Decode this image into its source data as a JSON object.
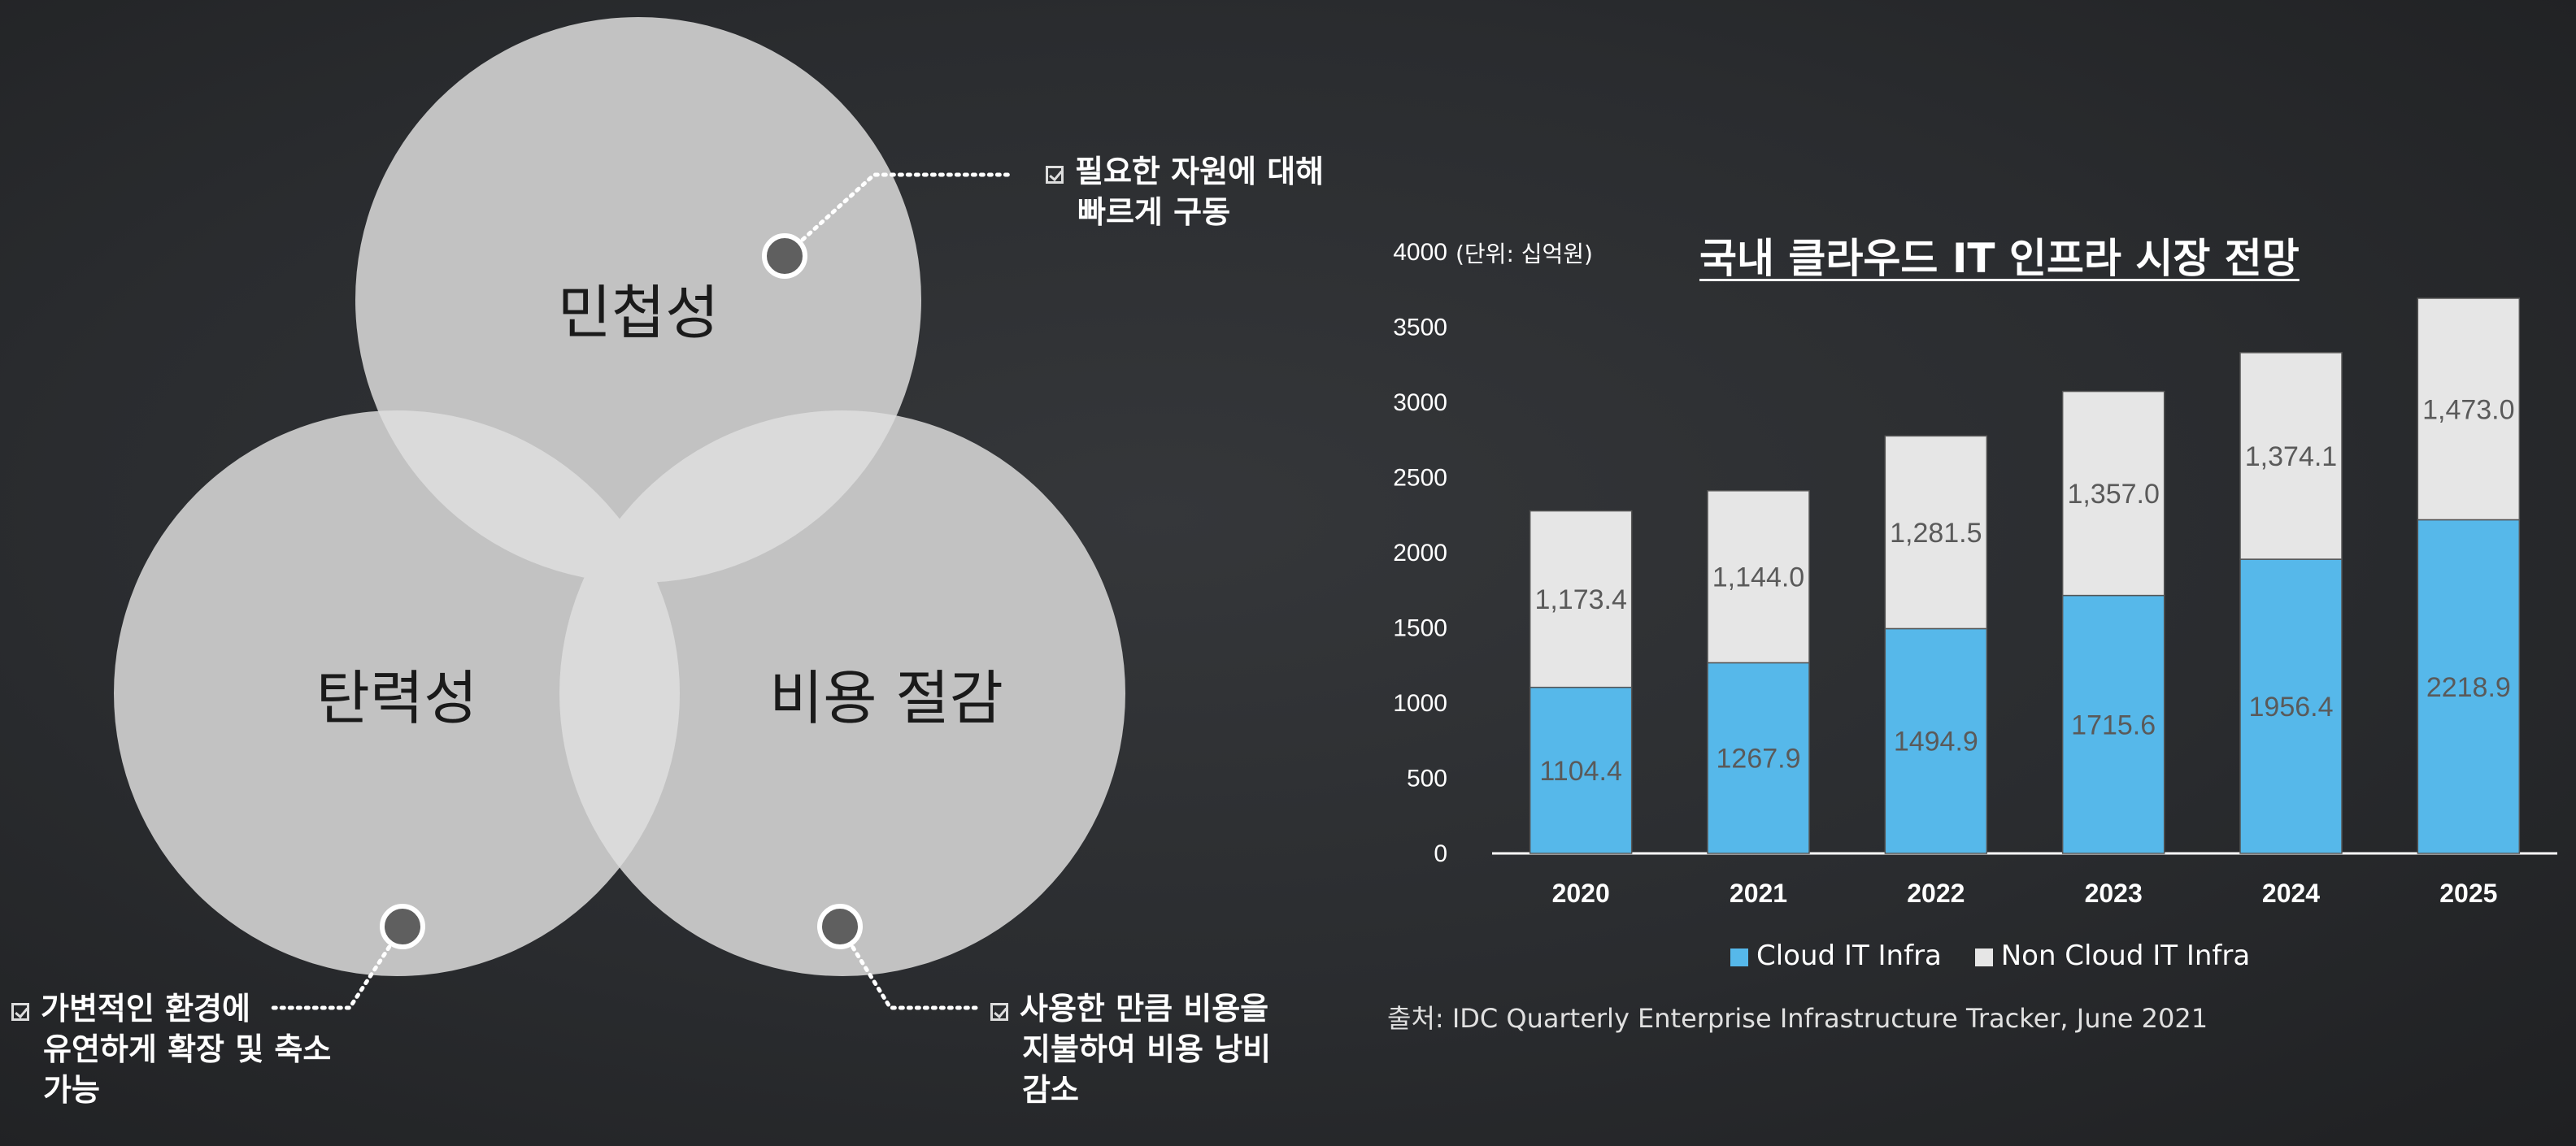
{
  "venn": {
    "top_label": "민첩성",
    "left_label": "탄력성",
    "right_label": "비용 절감"
  },
  "notes": {
    "agility": [
      "필요한 자원에 대해",
      "빠르게 구동"
    ],
    "elasticity": [
      "가변적인 환경에",
      "유연하게 확장 및 축소",
      "가능"
    ],
    "cost": [
      "사용한 만큼 비용을",
      "지불하여 비용 낭비",
      "감소"
    ]
  },
  "colors": {
    "circle": "#c2c2c2",
    "cloud": "#56b8ea",
    "non_cloud": "#e6e6e6",
    "marker_fill": "#5f5f5f"
  },
  "chart_data": {
    "type": "bar",
    "stacked": true,
    "title": "국내 클라우드 IT 인프라 시장 전망",
    "unit_label": "(단위: 십억원)",
    "categories": [
      "2020",
      "2021",
      "2022",
      "2023",
      "2024",
      "2025"
    ],
    "series": [
      {
        "name": "Cloud IT Infra",
        "values": [
          1104.4,
          1267.9,
          1494.9,
          1715.6,
          1956.4,
          2218.9
        ],
        "labels": [
          "1104.4",
          "1267.9",
          "1494.9",
          "1715.6",
          "1956.4",
          "2218.9"
        ]
      },
      {
        "name": "Non Cloud IT Infra",
        "values": [
          1173.4,
          1144.0,
          1281.5,
          1357.0,
          1374.1,
          1473.0
        ],
        "labels": [
          "1,173.4",
          "1,144.0",
          "1,281.5",
          "1,357.0",
          "1,374.1",
          "1,473.0"
        ]
      }
    ],
    "ylim": [
      0,
      4000
    ],
    "yticks": [
      0,
      500,
      1000,
      1500,
      2000,
      2500,
      3000,
      3500,
      4000
    ],
    "legend_position": "bottom",
    "grid": false,
    "source": "출처: IDC Quarterly Enterprise Infrastructure Tracker, June 2021"
  }
}
